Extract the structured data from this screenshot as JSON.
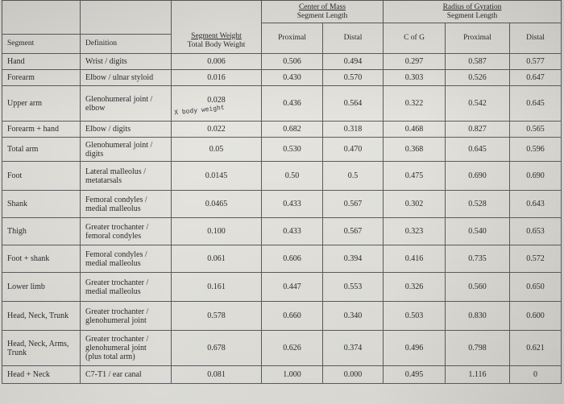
{
  "headers": {
    "segment": "Segment",
    "definition": "Definition",
    "weight_line1": "Segment Weight",
    "weight_line2": "Total Body Weight",
    "com_line1": "Center of Mass",
    "com_line2": "Segment Length",
    "rog_line1": "Radius of Gyration",
    "rog_line2": "Segment Length",
    "proximal": "Proximal",
    "distal": "Distal",
    "c_of_g": "C of G"
  },
  "annotation": "X body weight",
  "rows": [
    {
      "segment": "Hand",
      "definition": [
        "Wrist / digits"
      ],
      "weight": "0.006",
      "com_prox": "0.506",
      "com_dist": "0.494",
      "rog_cg": "0.297",
      "rog_prox": "0.587",
      "rog_dist": "0.577"
    },
    {
      "segment": "Forearm",
      "definition": [
        "Elbow / ulnar styloid"
      ],
      "weight": "0.016",
      "com_prox": "0.430",
      "com_dist": "0.570",
      "rog_cg": "0.303",
      "rog_prox": "0.526",
      "rog_dist": "0.647"
    },
    {
      "segment": "Upper arm",
      "definition": [
        "Glenohumeral joint /",
        "elbow"
      ],
      "weight": "0.028",
      "com_prox": "0.436",
      "com_dist": "0.564",
      "rog_cg": "0.322",
      "rog_prox": "0.542",
      "rog_dist": "0.645"
    },
    {
      "segment": "Forearm + hand",
      "definition": [
        "Elbow / digits"
      ],
      "weight": "0.022",
      "com_prox": "0.682",
      "com_dist": "0.318",
      "rog_cg": "0.468",
      "rog_prox": "0.827",
      "rog_dist": "0.565"
    },
    {
      "segment": "Total arm",
      "definition": [
        "Glenohumeral joint /",
        "digits"
      ],
      "weight": "0.05",
      "com_prox": "0.530",
      "com_dist": "0.470",
      "rog_cg": "0.368",
      "rog_prox": "0.645",
      "rog_dist": "0.596"
    },
    {
      "segment": "Foot",
      "definition": [
        "Lateral malleolus /",
        "metatarsals"
      ],
      "weight": "0.0145",
      "com_prox": "0.50",
      "com_dist": "0.5",
      "rog_cg": "0.475",
      "rog_prox": "0.690",
      "rog_dist": "0.690"
    },
    {
      "segment": "Shank",
      "definition": [
        "Femoral condyles /",
        "medial malleolus"
      ],
      "weight": "0.0465",
      "com_prox": "0.433",
      "com_dist": "0.567",
      "rog_cg": "0.302",
      "rog_prox": "0.528",
      "rog_dist": "0.643"
    },
    {
      "segment": "Thigh",
      "definition": [
        "Greater trochanter /",
        "femoral condyles"
      ],
      "weight": "0.100",
      "com_prox": "0.433",
      "com_dist": "0.567",
      "rog_cg": "0.323",
      "rog_prox": "0.540",
      "rog_dist": "0.653"
    },
    {
      "segment": "Foot + shank",
      "definition": [
        "Femoral condyles /",
        "medial malleolus"
      ],
      "weight": "0.061",
      "com_prox": "0.606",
      "com_dist": "0.394",
      "rog_cg": "0.416",
      "rog_prox": "0.735",
      "rog_dist": "0.572"
    },
    {
      "segment": "Lower limb",
      "definition": [
        "Greater trochanter /",
        "medial malleolus"
      ],
      "weight": "0.161",
      "com_prox": "0.447",
      "com_dist": "0.553",
      "rog_cg": "0.326",
      "rog_prox": "0.560",
      "rog_dist": "0.650"
    },
    {
      "segment": "Head, Neck, Trunk",
      "definition": [
        "Greater trochanter /",
        "glenohumeral joint"
      ],
      "weight": "0.578",
      "com_prox": "0.660",
      "com_dist": "0.340",
      "rog_cg": "0.503",
      "rog_prox": "0.830",
      "rog_dist": "0.600"
    },
    {
      "segment": "Head, Neck, Arms, Trunk",
      "definition": [
        "Greater trochanter /",
        "glenohumeral joint",
        "(plus total arm)"
      ],
      "weight": "0.678",
      "com_prox": "0.626",
      "com_dist": "0.374",
      "rog_cg": "0.496",
      "rog_prox": "0.798",
      "rog_dist": "0.621"
    },
    {
      "segment": "Head + Neck",
      "definition": [
        "C7-T1 / ear canal"
      ],
      "weight": "0.081",
      "com_prox": "1.000",
      "com_dist": "0.000",
      "rog_cg": "0.495",
      "rog_prox": "1.116",
      "rog_dist": "0"
    }
  ]
}
